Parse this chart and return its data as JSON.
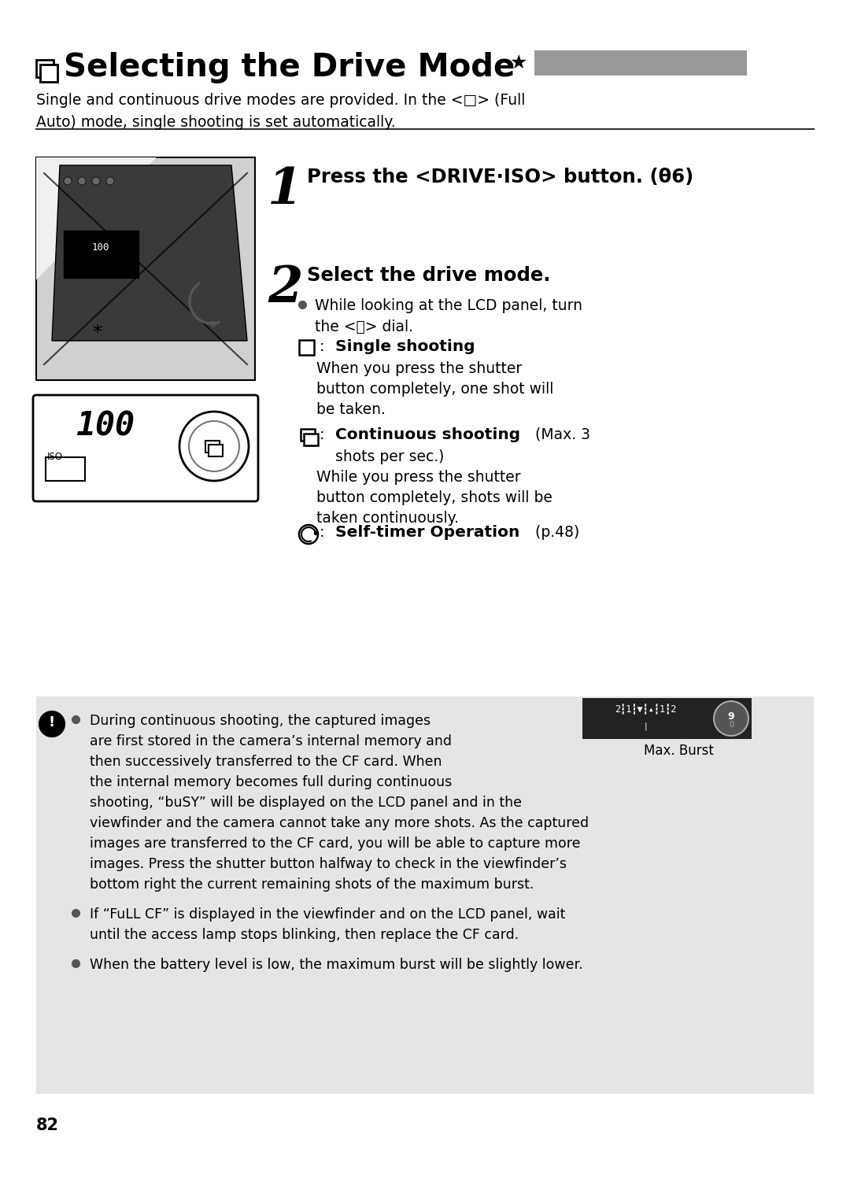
{
  "background_color": "#ffffff",
  "gray_bar_color": "#999999",
  "light_gray_bg": "#e5e5e5",
  "dark_bg": "#222222",
  "page_number": "82",
  "title_main": "Selecting the Drive Mode",
  "subtitle_line1": "Single and continuous drive modes are provided. In the <□> (Full",
  "subtitle_line2": "Auto) mode, single shooting is set automatically.",
  "step1_text": "Press the <DRIVE·ISO> button. (θ6)",
  "step2_text": "Select the drive mode.",
  "bullet_lcd1": "While looking at the LCD panel, turn",
  "bullet_lcd2": "the <⛓> dial.",
  "mode1_label": "Single shooting",
  "mode1_desc1": "When you press the shutter",
  "mode1_desc2": "button completely, one shot will",
  "mode1_desc3": "be taken.",
  "mode2_label_bold": "Continuous shooting",
  "mode2_label_normal": " (Max. 3",
  "mode2_label2": "shots per sec.)",
  "mode2_desc1": "While you press the shutter",
  "mode2_desc2": "button completely, shots will be",
  "mode2_desc3": "taken continuously.",
  "mode3_label_bold": "Self-timer Operation",
  "mode3_label_normal": " (p.48)",
  "note_1a": "During continuous shooting, the captured images",
  "note_1b": "are first stored in the camera’s internal memory and",
  "note_1c": "then successively transferred to the CF card. When",
  "note_1d": "the internal memory becomes full during continuous",
  "note_1e": "shooting, “buSY” will be displayed on the LCD panel and in the",
  "note_1f": "viewfinder and the camera cannot take any more shots. As the captured",
  "note_1g": "images are transferred to the CF card, you will be able to capture more",
  "note_1h": "images. Press the shutter button halfway to check in the viewfinder’s",
  "note_1i": "bottom right the current remaining shots of the maximum burst.",
  "note_2a": "If “FuLL CF” is displayed in the viewfinder and on the LCD panel, wait",
  "note_2b": "until the access lamp stops blinking, then replace the CF card.",
  "note_3": "When the battery level is low, the maximum burst will be slightly lower.",
  "max_burst_label": "Max. Burst",
  "lm": 46,
  "rm": 1034
}
